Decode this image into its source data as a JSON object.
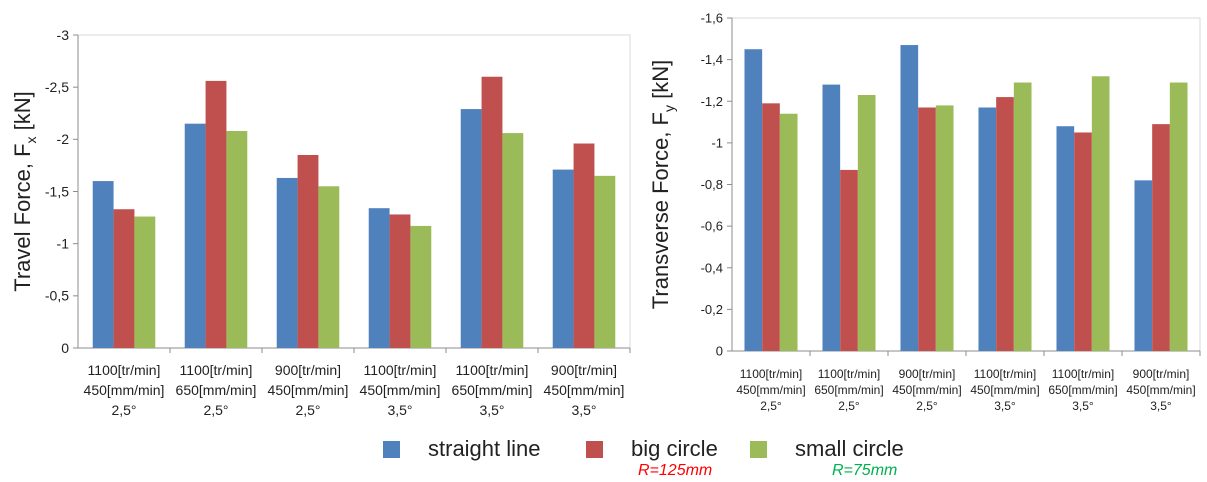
{
  "chart_data": [
    {
      "type": "bar",
      "ylabel": "Travel Force, F",
      "ylabel_subscript": "x",
      "ylabel_unit": "[kN]",
      "ylim": [
        0,
        -3
      ],
      "yticks": [
        "0",
        "-0,5",
        "-1",
        "-1,5",
        "-2",
        "-2,5",
        "-3"
      ],
      "categories": [
        [
          "1100[tr/min]",
          "450[mm/min]",
          "2,5°"
        ],
        [
          "1100[tr/min]",
          "650[mm/min]",
          "2,5°"
        ],
        [
          "900[tr/min]",
          "450[mm/min]",
          "2,5°"
        ],
        [
          "1100[tr/min]",
          "450[mm/min]",
          "3,5°"
        ],
        [
          "1100[tr/min]",
          "650[mm/min]",
          "3,5°"
        ],
        [
          "900[tr/min]",
          "450[mm/min]",
          "3,5°"
        ]
      ],
      "series": [
        {
          "name": "straight line",
          "color": "#4f81bd",
          "values": [
            -1.6,
            -2.15,
            -1.63,
            -1.34,
            -2.29,
            -1.71
          ]
        },
        {
          "name": "big circle",
          "color": "#c0504d",
          "values": [
            -1.33,
            -2.56,
            -1.85,
            -1.28,
            -2.6,
            -1.96
          ]
        },
        {
          "name": "small circle",
          "color": "#9bbb59",
          "values": [
            -1.26,
            -2.08,
            -1.55,
            -1.17,
            -2.06,
            -1.65
          ]
        }
      ],
      "grid": false
    },
    {
      "type": "bar",
      "ylabel": "Transverse Force, F",
      "ylabel_subscript": "y",
      "ylabel_unit": "[kN]",
      "ylim": [
        0,
        -1.6
      ],
      "yticks": [
        "0",
        "-0,2",
        "-0,4",
        "-0,6",
        "-0,8",
        "-1",
        "-1,2",
        "-1,4",
        "-1,6"
      ],
      "categories": [
        [
          "1100[tr/min]",
          "450[mm/min]",
          "2,5°"
        ],
        [
          "1100[tr/min]",
          "650[mm/min]",
          "2,5°"
        ],
        [
          "900[tr/min]",
          "450[mm/min]",
          "2,5°"
        ],
        [
          "1100[tr/min]",
          "450[mm/min]",
          "3,5°"
        ],
        [
          "1100[tr/min]",
          "650[mm/min]",
          "3,5°"
        ],
        [
          "900[tr/min]",
          "450[mm/min]",
          "3,5°"
        ]
      ],
      "series": [
        {
          "name": "straight line",
          "color": "#4f81bd",
          "values": [
            -1.45,
            -1.28,
            -1.47,
            -1.17,
            -1.08,
            -0.82
          ]
        },
        {
          "name": "big circle",
          "color": "#c0504d",
          "values": [
            -1.19,
            -0.87,
            -1.17,
            -1.22,
            -1.05,
            -1.09
          ]
        },
        {
          "name": "small circle",
          "color": "#9bbb59",
          "values": [
            -1.14,
            -1.23,
            -1.18,
            -1.29,
            -1.32,
            -1.29
          ]
        }
      ],
      "grid": false
    }
  ],
  "legend": {
    "items": [
      {
        "label": "straight line",
        "color": "#4f81bd",
        "note": ""
      },
      {
        "label": "big circle",
        "color": "#c0504d",
        "note": "R=125mm",
        "note_color": "#ff0000"
      },
      {
        "label": "small circle",
        "color": "#9bbb59",
        "note": "R=75mm",
        "note_color": "#00b050"
      }
    ]
  }
}
